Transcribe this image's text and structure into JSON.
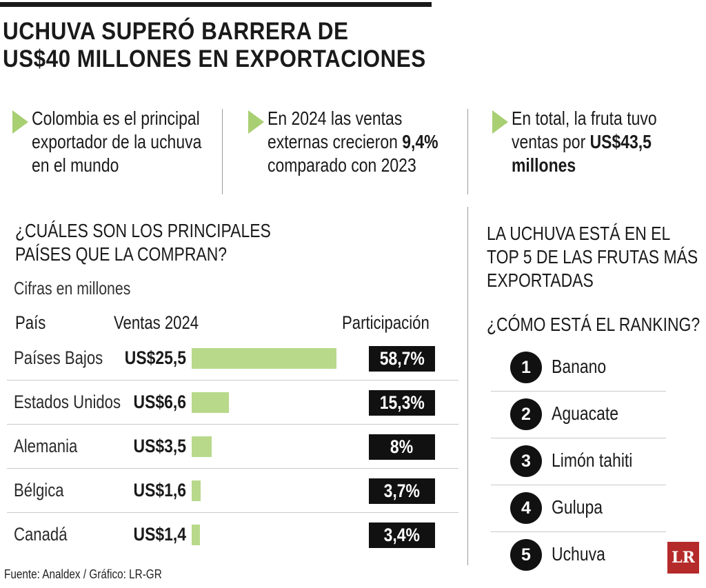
{
  "headline": {
    "line1": "UCHUVA SUPERÓ BARRERA DE",
    "line2": "US$40 MILLONES EN EXPORTACIONES"
  },
  "facts": [
    {
      "lines": [
        "Colombia es el principal",
        "exportador de la uchuva",
        "en el mundo"
      ]
    },
    {
      "lines": [
        "En 2024 las ventas",
        "externas crecieron ",
        "comparado con 2023"
      ],
      "highlight": "9,4%"
    },
    {
      "lines": [
        "En total, la fruta tuvo",
        "ventas por ",
        "millones"
      ],
      "highlight": "US$43,5"
    }
  ],
  "left_section": {
    "title_line1": "¿CUÁLES SON LOS PRINCIPALES",
    "title_line2": "PAÍSES QUE LA COMPRAN?",
    "subtitle": "Cifras en millones",
    "col_country": "País",
    "col_sales": "Ventas 2024",
    "col_share": "Participación"
  },
  "chart_data": {
    "type": "bar",
    "orientation": "horizontal",
    "categories": [
      "Países Bajos",
      "Estados Unidos",
      "Alemania",
      "Bélgica",
      "Canadá"
    ],
    "values": [
      25.5,
      6.6,
      3.5,
      1.6,
      1.4
    ],
    "value_labels": [
      "US$25,5",
      "US$6,6",
      "US$3,5",
      "US$1,6",
      "US$1,4"
    ],
    "share_labels": [
      "58,7%",
      "15,3%",
      "8%",
      "3,7%",
      "3,4%"
    ],
    "xlim": [
      0,
      25.5
    ],
    "bar_color": "#b8d98a"
  },
  "right_section": {
    "title_line1": "LA UCHUVA ESTÁ EN EL",
    "title_line2": "TOP 5 DE LAS FRUTAS MÁS",
    "title_line3": "EXPORTADAS",
    "subtitle": "¿CÓMO ESTÁ EL RANKING?",
    "ranking": [
      {
        "pos": "1",
        "name": "Banano"
      },
      {
        "pos": "2",
        "name": "Aguacate"
      },
      {
        "pos": "3",
        "name": "Limón tahiti"
      },
      {
        "pos": "4",
        "name": "Gulupa"
      },
      {
        "pos": "5",
        "name": "Uchuva"
      }
    ]
  },
  "footer": {
    "source": "Fuente: Analdex / Gráfico: LR-GR",
    "logo": "LR"
  },
  "colors": {
    "accent_green": "#a9cf73",
    "badge": "#111111",
    "logo_red": "#b52a2a"
  }
}
